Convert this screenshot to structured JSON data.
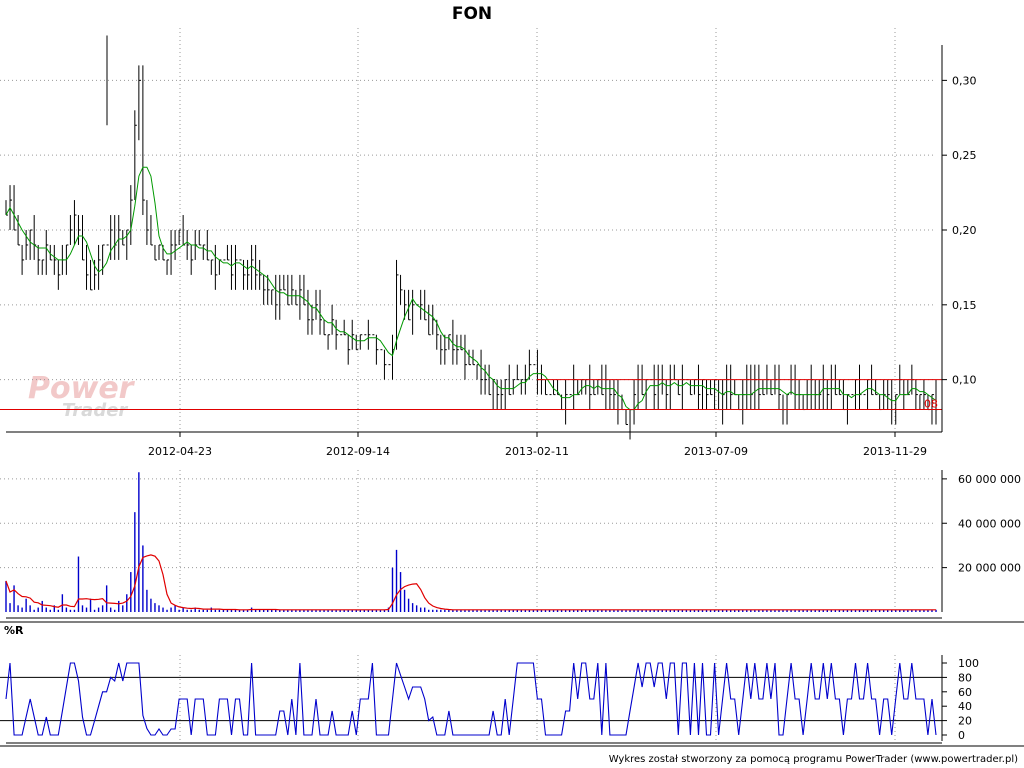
{
  "chart_data": {
    "type": "line",
    "title": "FON",
    "x_tick_labels": [
      "2012-04-23",
      "2012-09-14",
      "2013-02-11",
      "2013-07-09",
      "2013-11-29"
    ],
    "price_panel": {
      "chart_type": "hlc-bars with moving average",
      "y_ticks": [
        "0,10",
        "0,15",
        "0,20",
        "0,25",
        "0,30"
      ],
      "y_tick_values": [
        0.1,
        0.15,
        0.2,
        0.25,
        0.3
      ],
      "ylim": [
        0.065,
        0.335
      ],
      "resistance_line": 0.1,
      "support_line": 0.08,
      "last_value_label": "08",
      "close_series": [
        0.21,
        0.22,
        0.2,
        0.19,
        0.18,
        0.19,
        0.2,
        0.19,
        0.18,
        0.18,
        0.19,
        0.18,
        0.18,
        0.17,
        0.18,
        0.19,
        0.2,
        0.21,
        0.2,
        0.18,
        0.17,
        0.16,
        0.17,
        0.18,
        0.19,
        0.19,
        0.2,
        0.19,
        0.2,
        0.19,
        0.2,
        0.22,
        0.27,
        0.3,
        0.22,
        0.2,
        0.19,
        0.18,
        0.19,
        0.18,
        0.18,
        0.19,
        0.19,
        0.2,
        0.19,
        0.19,
        0.18,
        0.19,
        0.19,
        0.19,
        0.18,
        0.18,
        0.17,
        0.18,
        0.18,
        0.18,
        0.17,
        0.18,
        0.18,
        0.17,
        0.17,
        0.18,
        0.17,
        0.17,
        0.16,
        0.16,
        0.16,
        0.15,
        0.16,
        0.16,
        0.15,
        0.16,
        0.15,
        0.16,
        0.15,
        0.14,
        0.14,
        0.15,
        0.14,
        0.13,
        0.13,
        0.14,
        0.13,
        0.13,
        0.13,
        0.12,
        0.13,
        0.12,
        0.13,
        0.13,
        0.13,
        0.13,
        0.12,
        0.12,
        0.11,
        0.11,
        0.12,
        0.17,
        0.16,
        0.15,
        0.14,
        0.15,
        0.15,
        0.15,
        0.14,
        0.13,
        0.14,
        0.13,
        0.12,
        0.12,
        0.13,
        0.12,
        0.12,
        0.12,
        0.11,
        0.11,
        0.11,
        0.11,
        0.1,
        0.1,
        0.09,
        0.1,
        0.09,
        0.09,
        0.1,
        0.09,
        0.1,
        0.1,
        0.1,
        0.1,
        0.11,
        0.11,
        0.1,
        0.1,
        0.09,
        0.09,
        0.09,
        0.09,
        0.08,
        0.09,
        0.09,
        0.1,
        0.09,
        0.1,
        0.1,
        0.09,
        0.09,
        0.1,
        0.09,
        0.1,
        0.09,
        0.09,
        0.08,
        0.08,
        0.07,
        0.08,
        0.09,
        0.1,
        0.09,
        0.1,
        0.1,
        0.09,
        0.1,
        0.1,
        0.09,
        0.1,
        0.1,
        0.09,
        0.1,
        0.1,
        0.09,
        0.1,
        0.09,
        0.1,
        0.09,
        0.09,
        0.1,
        0.08,
        0.09,
        0.1,
        0.09,
        0.09,
        0.08,
        0.09,
        0.1,
        0.09,
        0.1,
        0.09,
        0.09,
        0.1,
        0.09,
        0.1,
        0.09,
        0.08,
        0.09,
        0.1,
        0.09,
        0.09,
        0.08,
        0.09,
        0.1,
        0.09,
        0.09,
        0.1,
        0.09,
        0.1,
        0.09,
        0.09,
        0.08,
        0.09,
        0.09,
        0.1,
        0.09,
        0.09,
        0.1,
        0.09,
        0.09,
        0.08,
        0.09,
        0.09,
        0.08,
        0.09,
        0.1,
        0.09,
        0.09,
        0.1,
        0.09,
        0.09,
        0.09,
        0.08,
        0.09,
        0.08
      ],
      "bar_color": "#000000",
      "ma_color": "#009900",
      "line_color": "#e00000"
    },
    "volume_panel": {
      "y_ticks": [
        "20 000 000",
        "40 000 000",
        "60 000 000"
      ],
      "y_tick_values": [
        20000000,
        40000000,
        60000000
      ],
      "ylim": [
        0,
        64000000
      ],
      "volume_series": [
        14,
        4,
        12,
        3,
        2,
        6,
        3,
        1,
        2,
        5,
        2,
        1,
        3,
        1,
        8,
        2,
        1,
        1,
        25,
        3,
        2,
        6,
        1,
        2,
        3,
        12,
        2,
        1,
        5,
        3,
        8,
        18,
        45,
        63,
        30,
        10,
        6,
        4,
        3,
        2,
        1,
        2,
        3,
        1,
        2,
        1,
        1,
        2,
        1,
        1,
        1,
        2,
        1,
        1,
        1,
        1,
        1,
        1,
        1,
        1,
        1,
        2,
        1,
        1,
        1,
        1,
        1,
        1,
        1,
        1,
        1,
        1,
        1,
        1,
        1,
        1,
        1,
        1,
        1,
        1,
        1,
        1,
        1,
        1,
        1,
        1,
        1,
        1,
        1,
        1,
        1,
        1,
        1,
        1,
        1,
        2,
        20,
        28,
        18,
        10,
        6,
        4,
        3,
        2,
        2,
        1,
        1,
        1,
        1,
        1,
        1,
        1,
        1,
        1,
        1,
        1,
        1,
        1,
        1,
        1,
        1,
        1,
        1,
        1,
        1,
        1,
        1,
        1,
        1,
        1,
        1,
        1,
        1,
        1,
        1,
        1,
        1,
        1,
        1,
        1,
        1,
        1,
        1,
        1,
        1,
        1,
        1,
        1,
        1,
        1,
        1,
        1,
        1,
        1,
        1,
        1,
        1,
        1,
        1,
        1,
        1,
        1,
        1,
        1,
        1,
        1,
        1,
        1,
        1,
        1,
        1,
        1,
        1,
        1,
        1,
        1,
        1,
        1,
        1,
        1,
        1,
        1,
        1,
        1,
        1,
        1,
        1,
        1,
        1,
        1,
        1,
        1,
        1,
        1,
        1,
        1,
        1,
        1,
        1,
        1,
        1,
        1,
        1,
        1,
        1,
        1,
        1,
        1,
        1,
        1,
        1,
        1,
        1,
        1,
        1,
        1,
        1,
        1,
        1,
        1,
        1,
        1,
        1,
        1,
        1,
        1,
        1,
        1,
        1,
        1,
        1,
        1
      ],
      "volume_unit_multiplier": 1000000,
      "bar_color": "#0000cc",
      "avg_color": "#e00000"
    },
    "williams_r_panel": {
      "label": "%R",
      "y_ticks": [
        "0",
        "20",
        "40",
        "60",
        "80",
        "100"
      ],
      "y_tick_values": [
        0,
        20,
        40,
        60,
        80,
        100
      ],
      "ylim": [
        0,
        100
      ],
      "reference_lines": [
        20,
        80
      ],
      "line_color": "#0000cc"
    }
  },
  "watermark": {
    "line1": "Power",
    "line2": "Trader"
  },
  "footer": {
    "credit": "Wykres został stworzony za pomocą programu PowerTrader (www.powertrader.pl)"
  }
}
